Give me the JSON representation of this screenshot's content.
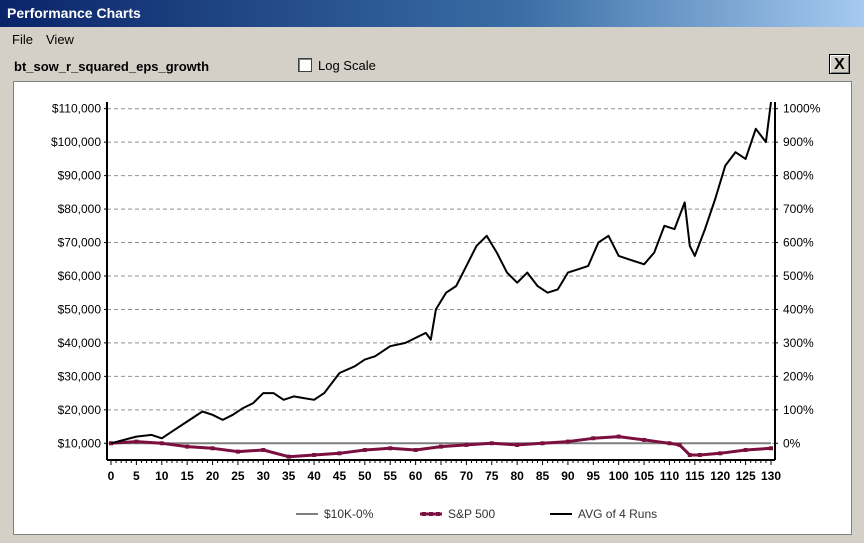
{
  "window": {
    "title": "Performance Charts"
  },
  "menu": {
    "file": "File",
    "view": "View"
  },
  "toolbar": {
    "strategy_name": "bt_sow_r_squared_eps_growth",
    "log_scale_label": "Log Scale",
    "close_label": "X"
  },
  "chart_data": {
    "type": "line",
    "x_range": [
      0,
      130
    ],
    "x_ticks": [
      0,
      5,
      10,
      15,
      20,
      25,
      30,
      35,
      40,
      45,
      50,
      55,
      60,
      65,
      70,
      75,
      80,
      85,
      90,
      95,
      100,
      105,
      110,
      115,
      120,
      125,
      130
    ],
    "y_left_range": [
      5000,
      112000
    ],
    "y_left_ticks": [
      "$10,000",
      "$20,000",
      "$30,000",
      "$40,000",
      "$50,000",
      "$60,000",
      "$70,000",
      "$80,000",
      "$90,000",
      "$100,000",
      "$110,000"
    ],
    "y_left_tick_values": [
      10000,
      20000,
      30000,
      40000,
      50000,
      60000,
      70000,
      80000,
      90000,
      100000,
      110000
    ],
    "y_right_ticks": [
      "0%",
      "100%",
      "200%",
      "300%",
      "400%",
      "500%",
      "600%",
      "700%",
      "800%",
      "900%",
      "1000%"
    ],
    "series": [
      {
        "name": "$10K-0%",
        "color": "#808080",
        "x": [
          0,
          130
        ],
        "values": [
          10000,
          10000
        ]
      },
      {
        "name": "S&P 500",
        "color": "#7b1040",
        "x": [
          0,
          5,
          10,
          15,
          20,
          25,
          30,
          35,
          40,
          45,
          50,
          55,
          60,
          65,
          70,
          75,
          80,
          85,
          90,
          95,
          100,
          105,
          110,
          112,
          114,
          116,
          120,
          125,
          130
        ],
        "values": [
          10000,
          10500,
          10000,
          9000,
          8500,
          7500,
          8000,
          6000,
          6500,
          7000,
          8000,
          8500,
          8000,
          9000,
          9500,
          10000,
          9500,
          10000,
          10500,
          11500,
          12000,
          11000,
          10000,
          9500,
          6500,
          6500,
          7000,
          8000,
          8500
        ]
      },
      {
        "name": "AVG of 4 Runs",
        "color": "#000000",
        "x": [
          0,
          5,
          8,
          10,
          12,
          15,
          18,
          20,
          22,
          24,
          26,
          28,
          30,
          32,
          34,
          36,
          38,
          40,
          42,
          45,
          48,
          50,
          52,
          55,
          58,
          60,
          62,
          63,
          64,
          66,
          68,
          70,
          72,
          74,
          76,
          78,
          80,
          82,
          84,
          86,
          88,
          90,
          92,
          94,
          96,
          98,
          100,
          102,
          105,
          107,
          109,
          111,
          113,
          114,
          115,
          117,
          119,
          121,
          123,
          125,
          127,
          129,
          130
        ],
        "values": [
          10000,
          12000,
          12500,
          11500,
          13500,
          16500,
          19500,
          18500,
          17000,
          18500,
          20500,
          22000,
          25000,
          25000,
          23000,
          24000,
          23500,
          23000,
          25000,
          31000,
          33000,
          35000,
          36000,
          39000,
          40000,
          41500,
          43000,
          41000,
          50000,
          55000,
          57000,
          63000,
          69000,
          72000,
          67000,
          61000,
          58000,
          61000,
          57000,
          55000,
          56000,
          61000,
          62000,
          63000,
          70000,
          72000,
          66000,
          65000,
          63500,
          67000,
          75000,
          74000,
          82000,
          69000,
          66000,
          74000,
          83000,
          93000,
          97000,
          95000,
          104000,
          100000,
          112000
        ]
      }
    ],
    "legend": [
      "$10K-0%",
      "S&P 500",
      "AVG of 4 Runs"
    ],
    "grid": true,
    "legend_position": "bottom"
  }
}
